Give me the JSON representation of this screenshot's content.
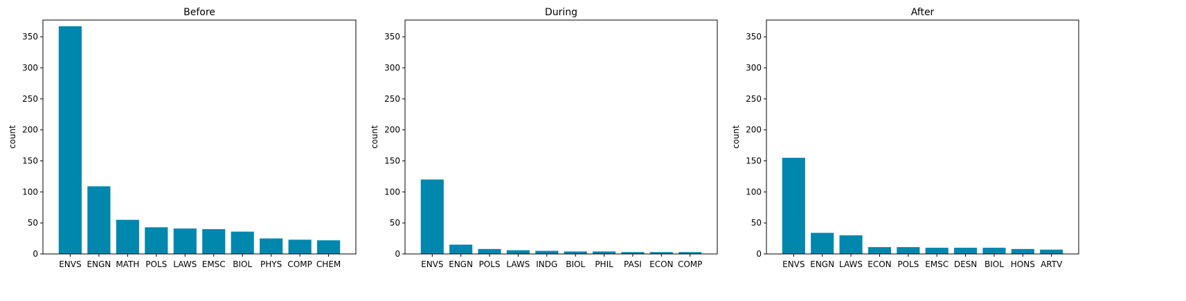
{
  "chart_data": [
    {
      "type": "bar",
      "title": "Before",
      "xlabel": "",
      "ylabel": "count",
      "ylim": [
        0,
        377
      ],
      "yticks": [
        0,
        50,
        100,
        150,
        200,
        250,
        300,
        350
      ],
      "categories": [
        "ENVS",
        "ENGN",
        "MATH",
        "POLS",
        "LAWS",
        "EMSC",
        "BIOL",
        "PHYS",
        "COMP",
        "CHEM"
      ],
      "values": [
        367,
        109,
        55,
        43,
        41,
        40,
        36,
        25,
        23,
        22
      ]
    },
    {
      "type": "bar",
      "title": "During",
      "xlabel": "",
      "ylabel": "count",
      "ylim": [
        0,
        377
      ],
      "yticks": [
        0,
        50,
        100,
        150,
        200,
        250,
        300,
        350
      ],
      "categories": [
        "ENVS",
        "ENGN",
        "POLS",
        "LAWS",
        "INDG",
        "BIOL",
        "PHIL",
        "PASI",
        "ECON",
        "COMP"
      ],
      "values": [
        120,
        15,
        8,
        6,
        5,
        4,
        4,
        3,
        3,
        3
      ]
    },
    {
      "type": "bar",
      "title": "After",
      "xlabel": "",
      "ylabel": "count",
      "ylim": [
        0,
        377
      ],
      "yticks": [
        0,
        50,
        100,
        150,
        200,
        250,
        300,
        350
      ],
      "categories": [
        "ENVS",
        "ENGN",
        "LAWS",
        "ECON",
        "POLS",
        "EMSC",
        "DESN",
        "BIOL",
        "HONS",
        "ARTV"
      ],
      "values": [
        155,
        34,
        30,
        11,
        11,
        10,
        10,
        10,
        8,
        7
      ]
    }
  ],
  "colors": {
    "bar": "#0087ae",
    "axis": "#000000"
  },
  "grid": false,
  "legend": "none"
}
